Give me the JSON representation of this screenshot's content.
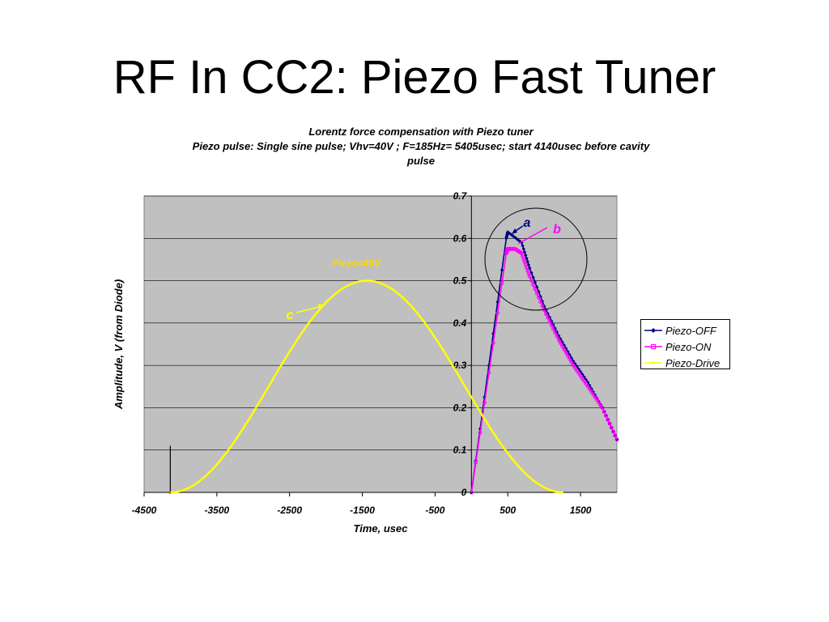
{
  "slide": {
    "title": "RF In CC2: Piezo Fast Tuner"
  },
  "chart_data": {
    "type": "line",
    "title_lines": [
      "Lorentz force compensation with Piezo tuner",
      "Piezo pulse: Single sine pulse; Vhv=40V ; F=185Hz= 5405usec; start 4140usec before cavity",
      "pulse"
    ],
    "xlabel": "Time, usec",
    "ylabel": "Amplitude, V (from Diode)",
    "xlim": [
      -4500,
      2000
    ],
    "ylim": [
      0,
      0.7
    ],
    "x_ticks": [
      "-4500",
      "-3500",
      "-2500",
      "-1500",
      "-500",
      "500",
      "1500"
    ],
    "y_ticks": [
      "0",
      "0.1",
      "0.2",
      "0.3",
      "0.4",
      "0.5",
      "0.6",
      "0.7"
    ],
    "grid": true,
    "plot_background": "#c0c0c0",
    "legend_position": "right",
    "series": [
      {
        "name": "Piezo-OFF",
        "color": "#000080",
        "marker": "diamond",
        "x": [
          0,
          480,
          500,
          690,
          800,
          1000,
          1200,
          1400,
          1600,
          1800,
          2000
        ],
        "y": [
          0,
          0.6,
          0.615,
          0.59,
          0.53,
          0.44,
          0.37,
          0.31,
          0.26,
          0.2,
          0.125
        ]
      },
      {
        "name": "Piezo-ON",
        "color": "#ff00ff",
        "marker": "circle",
        "x": [
          0,
          480,
          500,
          600,
          690,
          800,
          1000,
          1200,
          1400,
          1600,
          1800,
          2000
        ],
        "y": [
          0,
          0.565,
          0.575,
          0.575,
          0.565,
          0.51,
          0.43,
          0.36,
          0.3,
          0.25,
          0.2,
          0.125
        ]
      },
      {
        "name": "Piezo-Drive",
        "color": "#ffff00",
        "marker": "none",
        "x": [
          -4140,
          -3464,
          -2789,
          -2113,
          -1437,
          -762,
          -86,
          590,
          1265
        ],
        "y": [
          0,
          0.073,
          0.25,
          0.427,
          0.5,
          0.427,
          0.25,
          0.073,
          0
        ]
      }
    ],
    "annotations": {
      "a": "a",
      "b": "b",
      "c": "c",
      "piezo_label": "Piezo=40V"
    },
    "annotation_colors": {
      "a": "#000080",
      "b": "#ff00ff",
      "c": "#ffff00",
      "piezo_label": "#ffd700"
    }
  }
}
